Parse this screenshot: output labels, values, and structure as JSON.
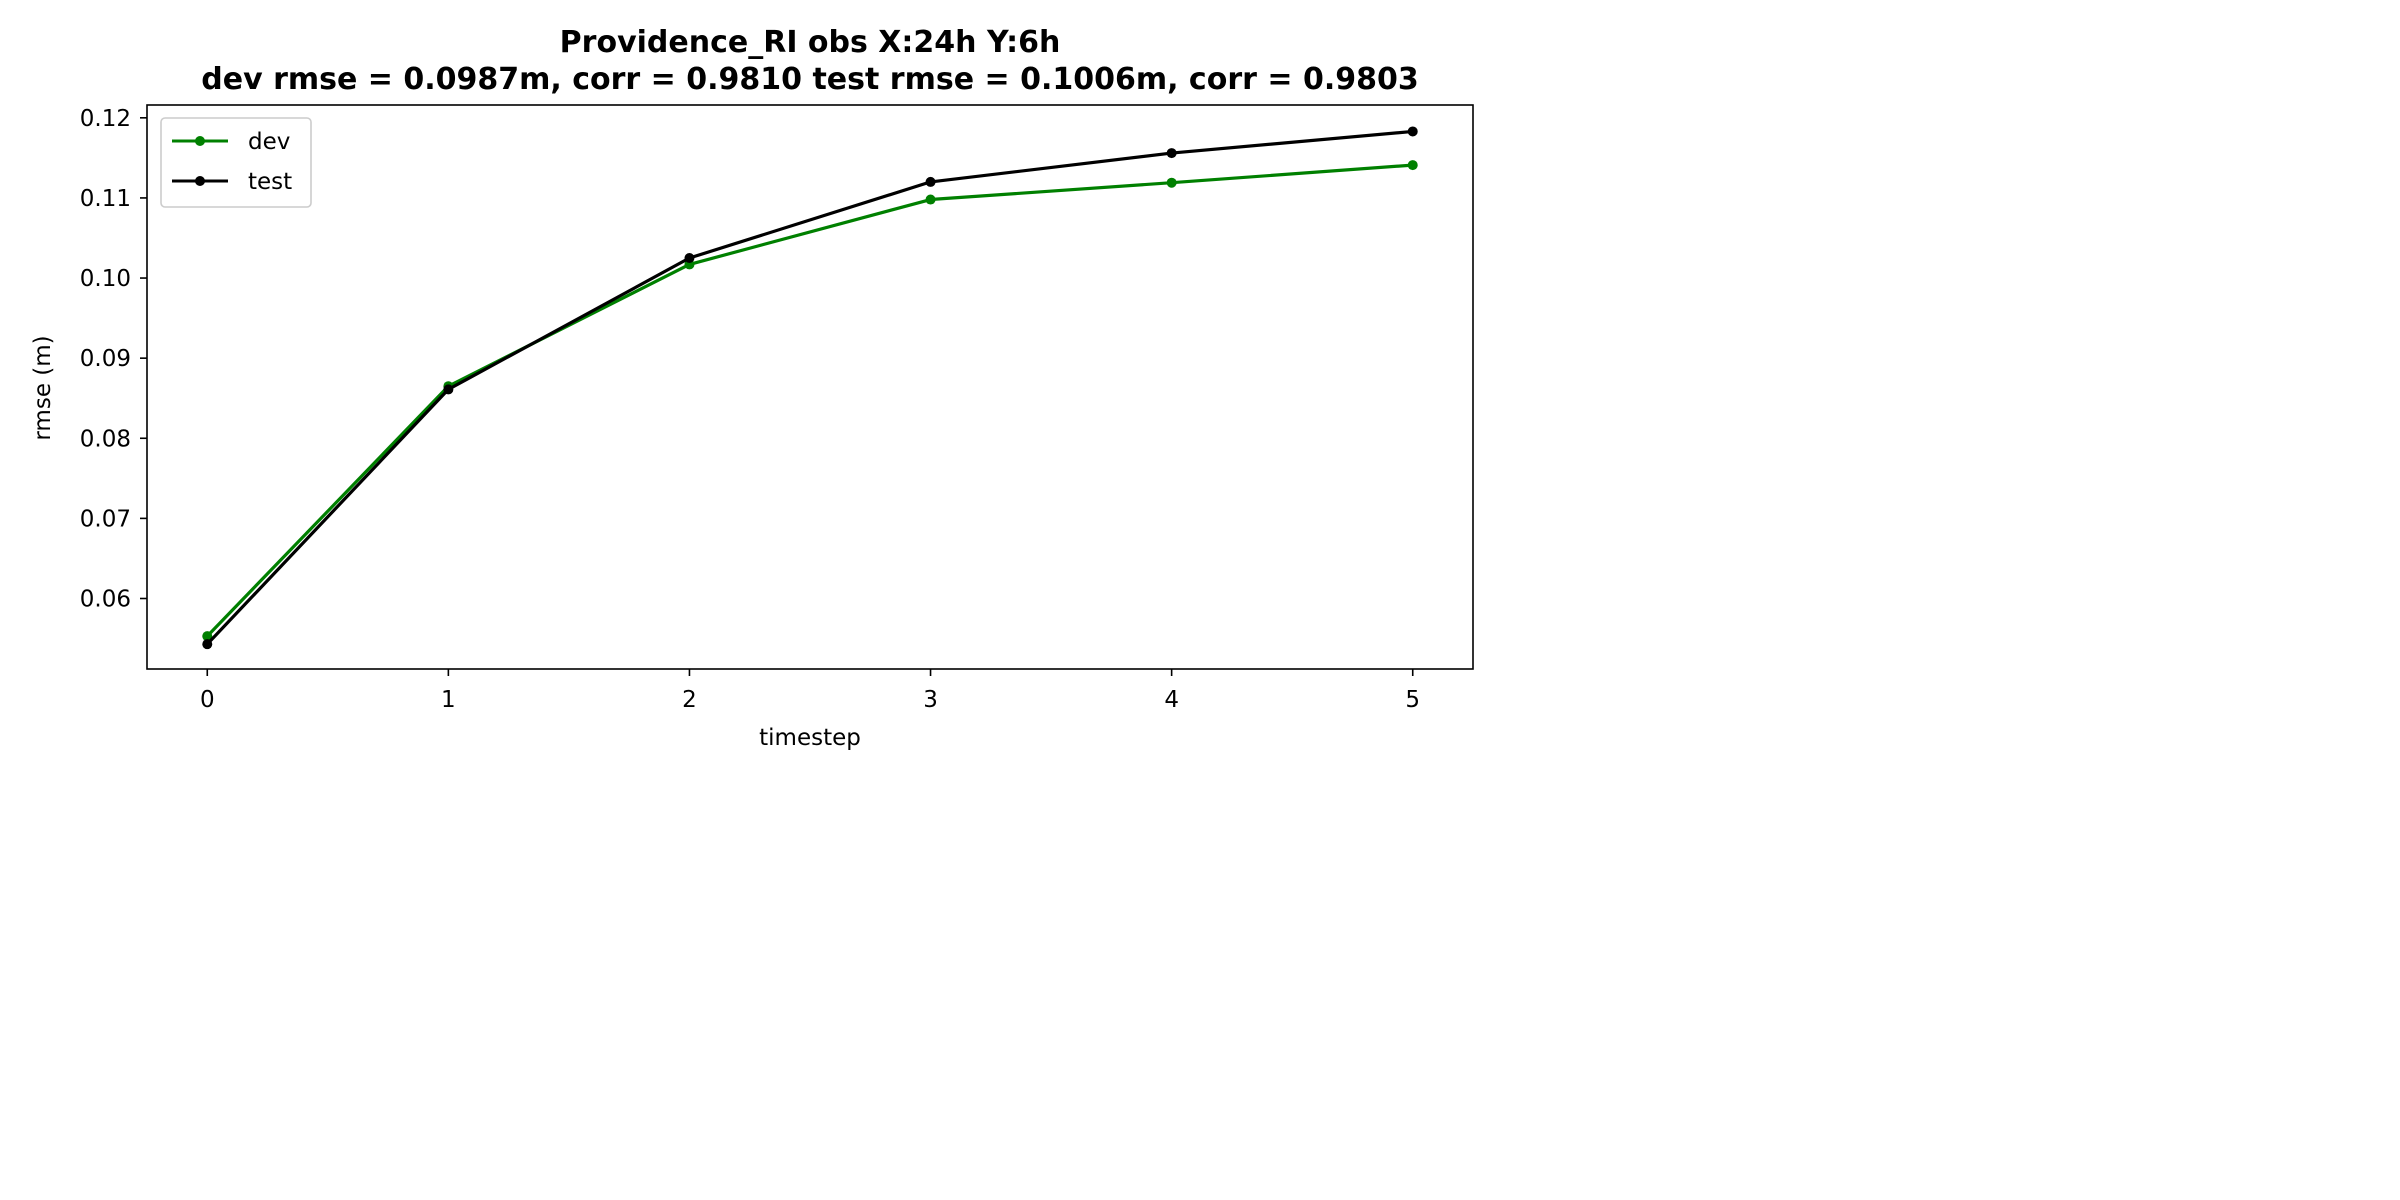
{
  "chart_data": {
    "type": "line",
    "title": "Providence_RI   obs   X:24h   Y:6h",
    "subtitle": "dev rmse = 0.0987m, corr = 0.9810   test rmse = 0.1006m, corr = 0.9803",
    "xlabel": "timestep",
    "ylabel": "rmse (m)",
    "x": [
      0,
      1,
      2,
      3,
      4,
      5
    ],
    "xlim": [
      -0.25,
      5.25
    ],
    "ylim": [
      0.0512,
      0.1216
    ],
    "xticks": [
      0,
      1,
      2,
      3,
      4,
      5
    ],
    "yticks": [
      0.06,
      0.07,
      0.08,
      0.09,
      0.1,
      0.11,
      0.12
    ],
    "ytick_labels": [
      "0.06",
      "0.07",
      "0.08",
      "0.09",
      "0.10",
      "0.11",
      "0.12"
    ],
    "grid": false,
    "legend_position": "top-left",
    "series": [
      {
        "name": "dev",
        "color": "#008000",
        "values": [
          0.0553,
          0.0865,
          0.1017,
          0.1098,
          0.1119,
          0.1141
        ]
      },
      {
        "name": "test",
        "color": "#000000",
        "values": [
          0.0543,
          0.0861,
          0.1025,
          0.112,
          0.1156,
          0.1183
        ]
      }
    ]
  }
}
